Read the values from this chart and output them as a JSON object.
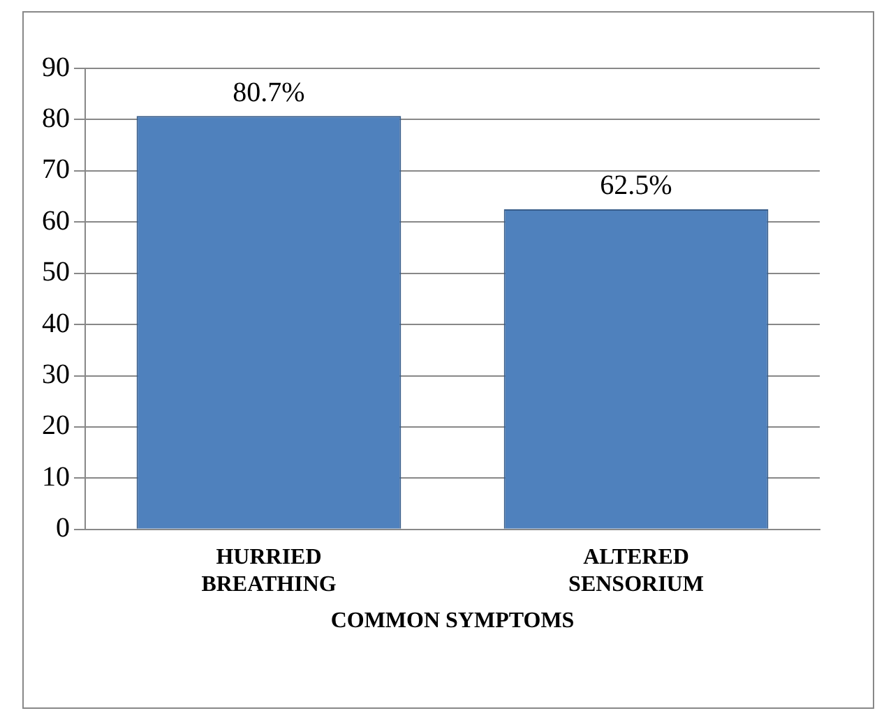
{
  "chart_data": {
    "type": "bar",
    "xlabel": "COMMON SYMPTOMS",
    "categories": [
      "HURRIED BREATHING",
      "ALTERED SENSORIUM"
    ],
    "values": [
      80.7,
      62.5
    ],
    "color": "#4f81bd",
    "value_labels": [
      "80.7%",
      "62.5%"
    ],
    "ylim": [
      0,
      90
    ],
    "yticks": [
      0,
      10,
      20,
      30,
      40,
      50,
      60,
      70,
      80,
      90
    ],
    "grid": "y",
    "legend": false
  }
}
